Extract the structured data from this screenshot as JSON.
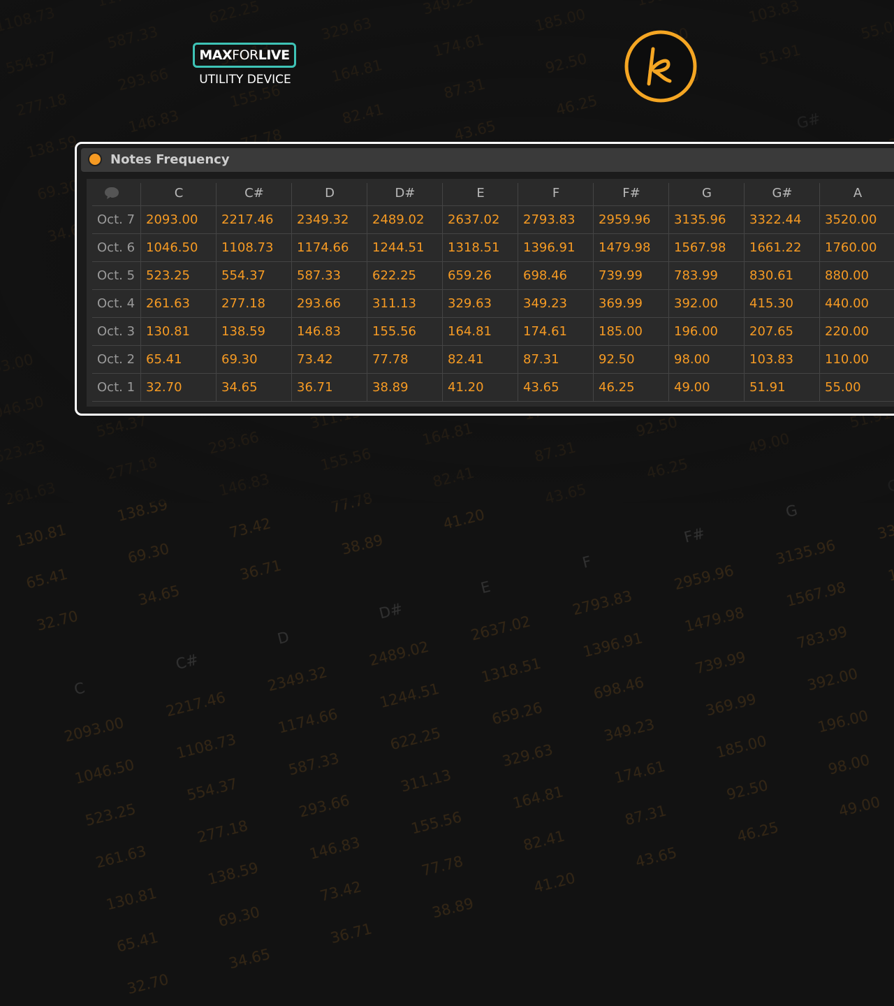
{
  "logo": {
    "parts": [
      "MAX",
      "FOR",
      "LIVE"
    ],
    "subtitle": "UTILITY DEVICE"
  },
  "panel": {
    "title": "Notes Frequency"
  },
  "table": {
    "columns": [
      "C",
      "C#",
      "D",
      "D#",
      "E",
      "F",
      "F#",
      "G",
      "G#",
      "A"
    ],
    "rows": [
      {
        "label": "Oct. 7",
        "cells": [
          "2093.00",
          "2217.46",
          "2349.32",
          "2489.02",
          "2637.02",
          "2793.83",
          "2959.96",
          "3135.96",
          "3322.44",
          "3520.00"
        ]
      },
      {
        "label": "Oct. 6",
        "cells": [
          "1046.50",
          "1108.73",
          "1174.66",
          "1244.51",
          "1318.51",
          "1396.91",
          "1479.98",
          "1567.98",
          "1661.22",
          "1760.00"
        ]
      },
      {
        "label": "Oct. 5",
        "cells": [
          "523.25",
          "554.37",
          "587.33",
          "622.25",
          "659.26",
          "698.46",
          "739.99",
          "783.99",
          "830.61",
          "880.00"
        ]
      },
      {
        "label": "Oct. 4",
        "cells": [
          "261.63",
          "277.18",
          "293.66",
          "311.13",
          "329.63",
          "349.23",
          "369.99",
          "392.00",
          "415.30",
          "440.00"
        ]
      },
      {
        "label": "Oct. 3",
        "cells": [
          "130.81",
          "138.59",
          "146.83",
          "155.56",
          "164.81",
          "174.61",
          "185.00",
          "196.00",
          "207.65",
          "220.00"
        ]
      },
      {
        "label": "Oct. 2",
        "cells": [
          "65.41",
          "69.30",
          "73.42",
          "77.78",
          "82.41",
          "87.31",
          "92.50",
          "98.00",
          "103.83",
          "110.00"
        ]
      },
      {
        "label": "Oct. 1",
        "cells": [
          "32.70",
          "34.65",
          "36.71",
          "38.89",
          "41.20",
          "43.65",
          "46.25",
          "49.00",
          "51.91",
          "55.00"
        ]
      }
    ]
  }
}
